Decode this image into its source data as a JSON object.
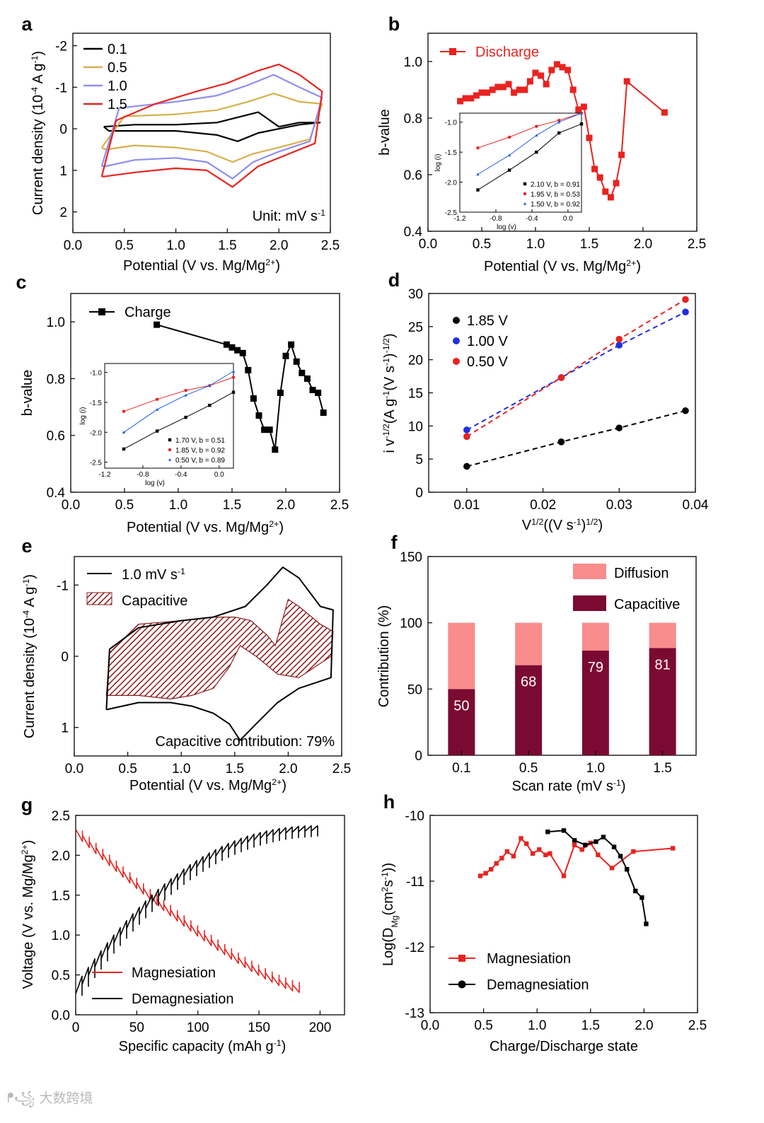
{
  "panel_labels": [
    "a",
    "b",
    "c",
    "d",
    "e",
    "f",
    "g",
    "h"
  ],
  "watermark": "大数跨境",
  "colors": {
    "black": "#000000",
    "red": "#e8231f",
    "blue": "#1f3fbf",
    "gold": "#d6b04c",
    "lightblue": "#8e8ef0",
    "lightred": "#f5888a",
    "darkblue": "#16376b",
    "maroon": "#7b0a32",
    "pink": "#f98c8c",
    "hatch": "#8b1a1a"
  },
  "chart_data": [
    {
      "id": "a",
      "type": "line",
      "title": "",
      "xlabel": "Potential (V vs. Mg/Mg",
      "xlabel_sup": "2+",
      "xlabel_end": ")",
      "ylabel": "Current density (10",
      "ylabel_sup1": "-4",
      "ylabel_mid": " A g",
      "ylabel_sup2": "-1",
      "ylabel_end": ")",
      "xlim": [
        0,
        2.5
      ],
      "ylim": [
        -2.3,
        2.5
      ],
      "y_inverted": true,
      "xticks": [
        "0.0",
        "0.5",
        "1.0",
        "1.5",
        "2.0",
        "2.5"
      ],
      "yticks": [
        "-2",
        "-1",
        "0",
        "1",
        "2"
      ],
      "legend": [
        "0.1",
        "0.5",
        "1.0",
        "1.5"
      ],
      "annotation": "Unit: mV s",
      "annotation_sup": "-1",
      "series": [
        {
          "name": "0.1",
          "color": "#000000",
          "x": [
            0.3,
            0.6,
            1.0,
            1.4,
            1.8,
            2.0,
            2.2,
            2.4,
            2.2,
            1.8,
            1.6,
            1.4,
            1.0,
            0.6,
            0.35,
            0.3
          ],
          "y": [
            -0.05,
            -0.1,
            -0.1,
            -0.15,
            -0.4,
            -0.05,
            -0.15,
            -0.15,
            -0.1,
            0.1,
            0.3,
            0.15,
            0.05,
            0.05,
            0.05,
            -0.05
          ]
        },
        {
          "name": "0.5",
          "color": "#d6b04c",
          "x": [
            0.28,
            0.5,
            1.0,
            1.4,
            1.7,
            1.95,
            2.2,
            2.42,
            2.3,
            2.0,
            1.75,
            1.55,
            1.3,
            1.0,
            0.6,
            0.32,
            0.28
          ],
          "y": [
            0.45,
            -0.3,
            -0.35,
            -0.45,
            -0.65,
            -0.85,
            -0.65,
            -0.6,
            0.25,
            0.45,
            0.6,
            0.8,
            0.55,
            0.45,
            0.4,
            0.5,
            0.45
          ]
        },
        {
          "name": "1.0",
          "color": "#8e8ef0",
          "x": [
            0.28,
            0.45,
            1.0,
            1.4,
            1.7,
            1.95,
            2.2,
            2.42,
            2.3,
            2.0,
            1.75,
            1.55,
            1.3,
            1.0,
            0.6,
            0.32,
            0.28
          ],
          "y": [
            0.9,
            -0.5,
            -0.65,
            -0.8,
            -1.05,
            -1.3,
            -1.0,
            -0.75,
            0.3,
            0.55,
            0.8,
            1.2,
            0.8,
            0.7,
            0.75,
            0.9,
            0.9
          ]
        },
        {
          "name": "1.5",
          "color": "#e8231f",
          "x": [
            0.28,
            0.42,
            0.8,
            1.2,
            1.5,
            1.8,
            2.0,
            2.2,
            2.42,
            2.35,
            2.1,
            1.8,
            1.55,
            1.3,
            1.0,
            0.6,
            0.3,
            0.28
          ],
          "y": [
            1.15,
            -0.2,
            -0.6,
            -0.9,
            -1.1,
            -1.4,
            -1.55,
            -1.3,
            -0.9,
            0.35,
            0.6,
            0.9,
            1.4,
            1.0,
            0.95,
            1.05,
            1.15,
            1.15
          ]
        }
      ]
    },
    {
      "id": "b",
      "type": "line",
      "xlabel": "Potential (V vs. Mg/Mg",
      "xlabel_sup": "2+",
      "xlabel_end": ")",
      "ylabel": "b-value",
      "xlim": [
        0,
        2.5
      ],
      "ylim": [
        0.4,
        1.1
      ],
      "xticks": [
        "0.0",
        "0.5",
        "1.0",
        "1.5",
        "2.0",
        "2.5"
      ],
      "yticks": [
        "0.4",
        "0.6",
        "0.8",
        "1.0"
      ],
      "legend": [
        "Discharge"
      ],
      "series": [
        {
          "name": "Discharge",
          "color": "#e8231f",
          "x": [
            0.3,
            0.35,
            0.4,
            0.45,
            0.5,
            0.55,
            0.6,
            0.65,
            0.7,
            0.75,
            0.8,
            0.85,
            0.9,
            0.95,
            1.0,
            1.05,
            1.1,
            1.15,
            1.2,
            1.25,
            1.3,
            1.35,
            1.4,
            1.45,
            1.5,
            1.55,
            1.6,
            1.65,
            1.7,
            1.75,
            1.8,
            1.85,
            2.2
          ],
          "y": [
            0.86,
            0.87,
            0.87,
            0.88,
            0.89,
            0.89,
            0.9,
            0.91,
            0.91,
            0.92,
            0.89,
            0.9,
            0.9,
            0.93,
            0.96,
            0.95,
            0.92,
            0.97,
            0.99,
            0.98,
            0.97,
            0.9,
            0.83,
            0.84,
            0.73,
            0.62,
            0.59,
            0.54,
            0.52,
            0.57,
            0.67,
            0.93,
            0.82
          ]
        }
      ],
      "inset": {
        "xlabel": "log (v)",
        "ylabel": "log (i)",
        "xlim": [
          -1.2,
          0.15
        ],
        "ylim": [
          -2.5,
          -0.85
        ],
        "xticks": [
          "-1.2",
          "-0.8",
          "-0.4",
          "0.0"
        ],
        "yticks": [
          "-2.5",
          "-2.0",
          "-1.5",
          "-1.0"
        ],
        "legend": [
          "2.10 V, b = 0.91",
          "1.95 V, b = 0.53",
          "1.50 V, b = 0.92"
        ],
        "series": [
          {
            "name": "2.10 V, b = 0.91",
            "color": "#000000",
            "x": [
              -1.0,
              -0.65,
              -0.35,
              -0.1,
              0.15
            ],
            "y": [
              -2.13,
              -1.8,
              -1.5,
              -1.18,
              -1.03
            ]
          },
          {
            "name": "1.95 V, b = 0.53",
            "color": "#e8231f",
            "x": [
              -1.0,
              -0.65,
              -0.35,
              -0.1,
              0.15
            ],
            "y": [
              -1.43,
              -1.25,
              -1.07,
              -0.97,
              -0.85
            ]
          },
          {
            "name": "1.50 V, b = 0.92",
            "color": "#1f5fdf",
            "x": [
              -1.0,
              -0.65,
              -0.35,
              -0.1,
              0.15
            ],
            "y": [
              -1.87,
              -1.55,
              -1.22,
              -1.0,
              -0.85
            ]
          }
        ]
      }
    },
    {
      "id": "c",
      "type": "line",
      "xlabel": "Potential (V vs. Mg/Mg",
      "xlabel_sup": "2+",
      "xlabel_end": ")",
      "ylabel": "b-value",
      "xlim": [
        0,
        2.5
      ],
      "ylim": [
        0.4,
        1.1
      ],
      "xticks": [
        "0.0",
        "0.5",
        "1.0",
        "1.5",
        "2.0",
        "2.5"
      ],
      "yticks": [
        "0.4",
        "0.6",
        "0.8",
        "1.0"
      ],
      "legend": [
        "Charge"
      ],
      "series": [
        {
          "name": "Charge",
          "color": "#000000",
          "x": [
            0.8,
            1.45,
            1.5,
            1.55,
            1.6,
            1.65,
            1.7,
            1.75,
            1.8,
            1.85,
            1.9,
            1.95,
            2.0,
            2.05,
            2.1,
            2.15,
            2.2,
            2.25,
            2.3,
            2.35
          ],
          "y": [
            0.99,
            0.92,
            0.91,
            0.9,
            0.89,
            0.83,
            0.73,
            0.67,
            0.62,
            0.62,
            0.55,
            0.75,
            0.88,
            0.92,
            0.86,
            0.82,
            0.8,
            0.76,
            0.75,
            0.68
          ]
        }
      ],
      "inset": {
        "xlabel": "log (v)",
        "ylabel": "log (i)",
        "xlim": [
          -1.2,
          0.15
        ],
        "ylim": [
          -2.6,
          -0.85
        ],
        "xticks": [
          "-1.2",
          "-0.8",
          "-0.4",
          "0.0"
        ],
        "yticks": [
          "-2.5",
          "-2.0",
          "-1.5",
          "-1.0"
        ],
        "legend": [
          "1.70 V, b = 0.51",
          "1.85 V, b = 0.92",
          "0.50 V, b = 0.89"
        ],
        "series": [
          {
            "name": "1.70 V, b = 0.51",
            "color": "#000000",
            "x": [
              -1.0,
              -0.65,
              -0.35,
              -0.1,
              0.15
            ],
            "y": [
              -2.28,
              -1.98,
              -1.75,
              -1.55,
              -1.33
            ]
          },
          {
            "name": "1.85 V, b = 0.92",
            "color": "#e8231f",
            "x": [
              -1.0,
              -0.65,
              -0.35,
              -0.1,
              0.15
            ],
            "y": [
              -1.65,
              -1.45,
              -1.3,
              -1.22,
              -1.08
            ]
          },
          {
            "name": "0.50 V, b = 0.89",
            "color": "#1f5fdf",
            "x": [
              -1.0,
              -0.65,
              -0.35,
              -0.1,
              0.15
            ],
            "y": [
              -2.0,
              -1.62,
              -1.38,
              -1.22,
              -0.98
            ]
          }
        ]
      }
    },
    {
      "id": "d",
      "type": "scatter",
      "xlabel": "V",
      "xlabel_sup1": "1/2",
      "xlabel_mid": "((V s",
      "xlabel_sup2": "-1",
      "xlabel_mid2": ")",
      "xlabel_sup3": "1/2",
      "xlabel_end": ")",
      "ylabel": "i v",
      "ylabel_sup1": "-1/2",
      "ylabel_mid": "(A g",
      "ylabel_sup2": "-1",
      "ylabel_mid2": "(V s",
      "ylabel_sup3": "-1",
      "ylabel_mid3": ")",
      "ylabel_sup4": "-1/2",
      "ylabel_end": ")",
      "xlim": [
        0.005,
        0.04
      ],
      "ylim": [
        0,
        30
      ],
      "xticks": [
        "0.01",
        "0.02",
        "0.03",
        "0.04"
      ],
      "yticks": [
        "0",
        "5",
        "10",
        "15",
        "20",
        "25",
        "30"
      ],
      "legend": [
        "1.85 V",
        "1.00 V",
        "0.50 V"
      ],
      "series": [
        {
          "name": "1.85 V",
          "color": "#000000",
          "x": [
            0.01,
            0.0224,
            0.03,
            0.0387
          ],
          "y": [
            3.9,
            7.6,
            9.7,
            12.3
          ]
        },
        {
          "name": "1.00 V",
          "color": "#1f2fe0",
          "x": [
            0.01,
            0.0224,
            0.03,
            0.0387
          ],
          "y": [
            9.4,
            17.3,
            22.2,
            27.2
          ]
        },
        {
          "name": "0.50 V",
          "color": "#e8231f",
          "x": [
            0.01,
            0.0224,
            0.03,
            0.0387
          ],
          "y": [
            8.4,
            17.3,
            23.1,
            29.1
          ]
        }
      ]
    },
    {
      "id": "e",
      "type": "area",
      "xlabel": "Potential (V vs. Mg/Mg",
      "xlabel_sup": "2+",
      "xlabel_end": ")",
      "ylabel": "Current density (10",
      "ylabel_sup1": "-4",
      "ylabel_mid": " A g",
      "ylabel_sup2": "-1",
      "ylabel_end": ")",
      "xlim": [
        0,
        2.5
      ],
      "ylim": [
        -1.4,
        1.4
      ],
      "y_inverted": true,
      "xticks": [
        "0.0",
        "0.5",
        "1.0",
        "1.5",
        "2.0",
        "2.5"
      ],
      "yticks": [
        "-1",
        "0",
        "1"
      ],
      "legend": [
        "1.0 mV s",
        "Capacitive"
      ],
      "legend_sup": "-1",
      "annotation": "Capacitive contribution: 79%",
      "series": [
        {
          "name": "1.0 mV s-1",
          "color": "#000000",
          "x": [
            0.3,
            0.33,
            0.6,
            1.0,
            1.3,
            1.6,
            1.8,
            1.95,
            2.1,
            2.3,
            2.42,
            2.4,
            2.1,
            1.9,
            1.7,
            1.55,
            1.45,
            1.3,
            1.1,
            0.9,
            0.6,
            0.3,
            0.3
          ],
          "y": [
            0.75,
            -0.1,
            -0.4,
            -0.5,
            -0.55,
            -0.7,
            -1.0,
            -1.25,
            -1.1,
            -0.7,
            -0.65,
            0.3,
            0.45,
            0.65,
            0.95,
            1.18,
            0.95,
            0.8,
            0.7,
            0.65,
            0.65,
            0.75,
            0.75
          ]
        },
        {
          "name": "Capacitive",
          "color": "#8b1a1a",
          "x": [
            0.3,
            0.33,
            0.6,
            1.0,
            1.3,
            1.5,
            1.65,
            1.8,
            1.88,
            2.0,
            2.1,
            2.3,
            2.42,
            2.4,
            2.1,
            1.9,
            1.7,
            1.55,
            1.45,
            1.3,
            1.1,
            0.9,
            0.6,
            0.3
          ],
          "y": [
            0.55,
            -0.05,
            -0.45,
            -0.5,
            -0.55,
            -0.55,
            -0.5,
            -0.3,
            -0.15,
            -0.8,
            -0.7,
            -0.45,
            -0.35,
            0.0,
            0.3,
            0.25,
            0.0,
            -0.15,
            0.15,
            0.45,
            0.55,
            0.6,
            0.55,
            0.55
          ]
        }
      ]
    },
    {
      "id": "f",
      "type": "bar",
      "xlabel": "Scan rate (mV s",
      "xlabel_sup": "-1",
      "xlabel_end": ")",
      "ylabel": "Contribution (%)",
      "ylim": [
        0,
        150
      ],
      "categories": [
        "0.1",
        "0.5",
        "1.0",
        "1.5"
      ],
      "yticks": [
        "0",
        "50",
        "100",
        "150"
      ],
      "legend": [
        "Diffusion",
        "Capacitive"
      ],
      "series": [
        {
          "name": "Capacitive",
          "color": "#7b0a32",
          "values": [
            50,
            68,
            79,
            81
          ]
        },
        {
          "name": "Diffusion",
          "color": "#f98c8c",
          "values": [
            50,
            32,
            21,
            19
          ]
        }
      ],
      "data_labels": [
        "50",
        "68",
        "79",
        "81"
      ]
    },
    {
      "id": "g",
      "type": "line",
      "xlabel": "Specific capacity (mAh g",
      "xlabel_sup": "-1",
      "xlabel_end": ")",
      "ylabel": "Voltage (V vs. Mg/Mg",
      "ylabel_sup": "2+",
      "ylabel_end": ")",
      "xlim": [
        0,
        220
      ],
      "ylim": [
        0,
        2.5
      ],
      "xticks": [
        "0",
        "50",
        "100",
        "150",
        "200"
      ],
      "yticks": [
        "0.0",
        "0.5",
        "1.0",
        "1.5",
        "2.0",
        "2.5"
      ],
      "legend": [
        "Magnesiation",
        "Demagnesiation"
      ],
      "series": [
        {
          "name": "Magnesiation",
          "color": "#e8231f",
          "x_start": 0,
          "x_end": 183,
          "y_start": 2.25,
          "y_end": 0.28,
          "pulses": 33,
          "relax": 0.13
        },
        {
          "name": "Demagnesiation",
          "color": "#000000",
          "x_start": 0,
          "x_end": 198,
          "y_start": 0.35,
          "y_end": 2.35,
          "pulses": 38,
          "relax": 0.22
        }
      ]
    },
    {
      "id": "h",
      "type": "line",
      "xlabel": "Charge/Discharge state",
      "ylabel": "Log(D",
      "ylabel_sub": "Mg",
      "ylabel_mid": "(cm",
      "ylabel_sup1": "2",
      "ylabel_mid2": "s",
      "ylabel_sup2": "-1",
      "ylabel_end": "))",
      "xlim": [
        0,
        2.5
      ],
      "ylim": [
        -13,
        -10
      ],
      "xticks": [
        "0.0",
        "0.5",
        "1.0",
        "1.5",
        "2.0",
        "2.5"
      ],
      "yticks": [
        "-13",
        "-12",
        "-11",
        "-10"
      ],
      "legend": [
        "Magnesiation",
        "Demagnesiation"
      ],
      "series": [
        {
          "name": "Magnesiation",
          "color": "#e8231f",
          "x": [
            0.47,
            0.52,
            0.57,
            0.62,
            0.67,
            0.72,
            0.78,
            0.85,
            0.9,
            0.96,
            1.02,
            1.08,
            1.12,
            1.25,
            1.35,
            1.42,
            1.5,
            1.57,
            1.7,
            1.9,
            2.27
          ],
          "y": [
            -10.92,
            -10.88,
            -10.82,
            -10.73,
            -10.65,
            -10.55,
            -10.62,
            -10.35,
            -10.43,
            -10.58,
            -10.52,
            -10.6,
            -10.58,
            -10.92,
            -10.45,
            -10.52,
            -10.42,
            -10.6,
            -10.8,
            -10.55,
            -10.5
          ]
        },
        {
          "name": "Demagnesiation",
          "color": "#000000",
          "x": [
            1.1,
            1.25,
            1.35,
            1.45,
            1.55,
            1.62,
            1.72,
            1.78,
            1.84,
            1.92,
            1.98,
            2.02
          ],
          "y": [
            -10.25,
            -10.23,
            -10.38,
            -10.45,
            -10.4,
            -10.33,
            -10.48,
            -10.62,
            -10.82,
            -11.15,
            -11.25,
            -11.65
          ]
        }
      ]
    }
  ]
}
